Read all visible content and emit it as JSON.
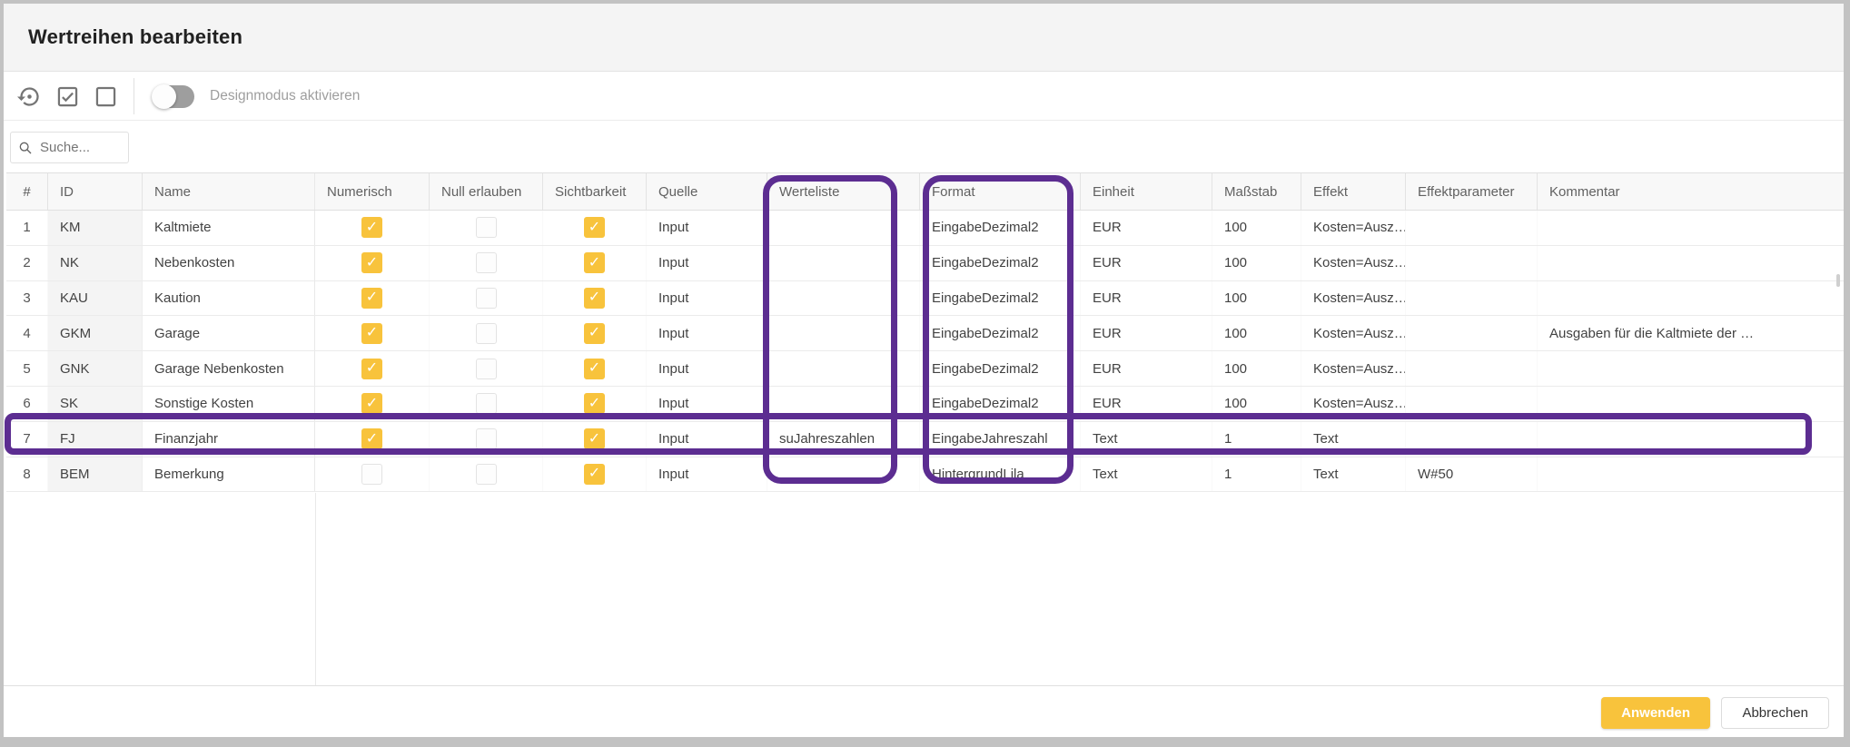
{
  "title": "Wertreihen bearbeiten",
  "toolbar": {
    "buttons": [
      {
        "icon": "restore-icon"
      },
      {
        "icon": "checkbox-checked-icon"
      },
      {
        "icon": "checkbox-empty-icon"
      }
    ],
    "design_mode_label": "Designmodus aktivieren",
    "design_mode_on": false
  },
  "search": {
    "placeholder": "Suche...",
    "value": ""
  },
  "table": {
    "columns": [
      {
        "key": "num",
        "label": "#"
      },
      {
        "key": "id",
        "label": "ID"
      },
      {
        "key": "name",
        "label": "Name"
      },
      {
        "key": "numerisch",
        "label": "Numerisch"
      },
      {
        "key": "nullErlauben",
        "label": "Null erlauben"
      },
      {
        "key": "sichtbarkeit",
        "label": "Sichtbarkeit"
      },
      {
        "key": "quelle",
        "label": "Quelle"
      },
      {
        "key": "werteliste",
        "label": "Werteliste"
      },
      {
        "key": "format",
        "label": "Format"
      },
      {
        "key": "einheit",
        "label": "Einheit"
      },
      {
        "key": "massstab",
        "label": "Maßstab"
      },
      {
        "key": "effekt",
        "label": "Effekt"
      },
      {
        "key": "effektparameter",
        "label": "Effektparameter"
      },
      {
        "key": "kommentar",
        "label": "Kommentar"
      }
    ],
    "checkbox_columns": [
      "numerisch",
      "nullErlauben",
      "sichtbarkeit"
    ],
    "rows": [
      {
        "num": "1",
        "id": "KM",
        "name": "Kaltmiete",
        "numerisch": true,
        "nullErlauben": false,
        "sichtbarkeit": true,
        "quelle": "Input",
        "werteliste": "",
        "format": "EingabeDezimal2",
        "einheit": "EUR",
        "massstab": "100",
        "effekt": "Kosten=Ausz…",
        "effektparameter": "",
        "kommentar": ""
      },
      {
        "num": "2",
        "id": "NK",
        "name": "Nebenkosten",
        "numerisch": true,
        "nullErlauben": false,
        "sichtbarkeit": true,
        "quelle": "Input",
        "werteliste": "",
        "format": "EingabeDezimal2",
        "einheit": "EUR",
        "massstab": "100",
        "effekt": "Kosten=Ausz…",
        "effektparameter": "",
        "kommentar": ""
      },
      {
        "num": "3",
        "id": "KAU",
        "name": "Kaution",
        "numerisch": true,
        "nullErlauben": false,
        "sichtbarkeit": true,
        "quelle": "Input",
        "werteliste": "",
        "format": "EingabeDezimal2",
        "einheit": "EUR",
        "massstab": "100",
        "effekt": "Kosten=Ausz…",
        "effektparameter": "",
        "kommentar": ""
      },
      {
        "num": "4",
        "id": "GKM",
        "name": "Garage",
        "numerisch": true,
        "nullErlauben": false,
        "sichtbarkeit": true,
        "quelle": "Input",
        "werteliste": "",
        "format": "EingabeDezimal2",
        "einheit": "EUR",
        "massstab": "100",
        "effekt": "Kosten=Ausz…",
        "effektparameter": "",
        "kommentar": "Ausgaben für die Kaltmiete der …"
      },
      {
        "num": "5",
        "id": "GNK",
        "name": "Garage Nebenkosten",
        "numerisch": true,
        "nullErlauben": false,
        "sichtbarkeit": true,
        "quelle": "Input",
        "werteliste": "",
        "format": "EingabeDezimal2",
        "einheit": "EUR",
        "massstab": "100",
        "effekt": "Kosten=Ausz…",
        "effektparameter": "",
        "kommentar": ""
      },
      {
        "num": "6",
        "id": "SK",
        "name": "Sonstige Kosten",
        "numerisch": true,
        "nullErlauben": false,
        "sichtbarkeit": true,
        "quelle": "Input",
        "werteliste": "",
        "format": "EingabeDezimal2",
        "einheit": "EUR",
        "massstab": "100",
        "effekt": "Kosten=Ausz…",
        "effektparameter": "",
        "kommentar": ""
      },
      {
        "num": "7",
        "id": "FJ",
        "name": "Finanzjahr",
        "numerisch": true,
        "nullErlauben": false,
        "sichtbarkeit": true,
        "quelle": "Input",
        "werteliste": "suJahreszahlen",
        "format": "EingabeJahreszahl",
        "einheit": "Text",
        "massstab": "1",
        "effekt": "Text",
        "effektparameter": "",
        "kommentar": ""
      },
      {
        "num": "8",
        "id": "BEM",
        "name": "Bemerkung",
        "numerisch": false,
        "nullErlauben": false,
        "sichtbarkeit": true,
        "quelle": "Input",
        "werteliste": "",
        "format": "HintergrundLila",
        "einheit": "Text",
        "massstab": "1",
        "effekt": "Text",
        "effektparameter": "W#50",
        "kommentar": ""
      }
    ]
  },
  "annotations": {
    "highlighted_columns": [
      "Werteliste",
      "Format"
    ],
    "highlighted_row": "7",
    "color": "#5C2D91"
  },
  "footer": {
    "apply_label": "Anwenden",
    "cancel_label": "Abbrechen"
  },
  "colors": {
    "accent": "#F8C33C",
    "annotation": "#5C2D91"
  }
}
